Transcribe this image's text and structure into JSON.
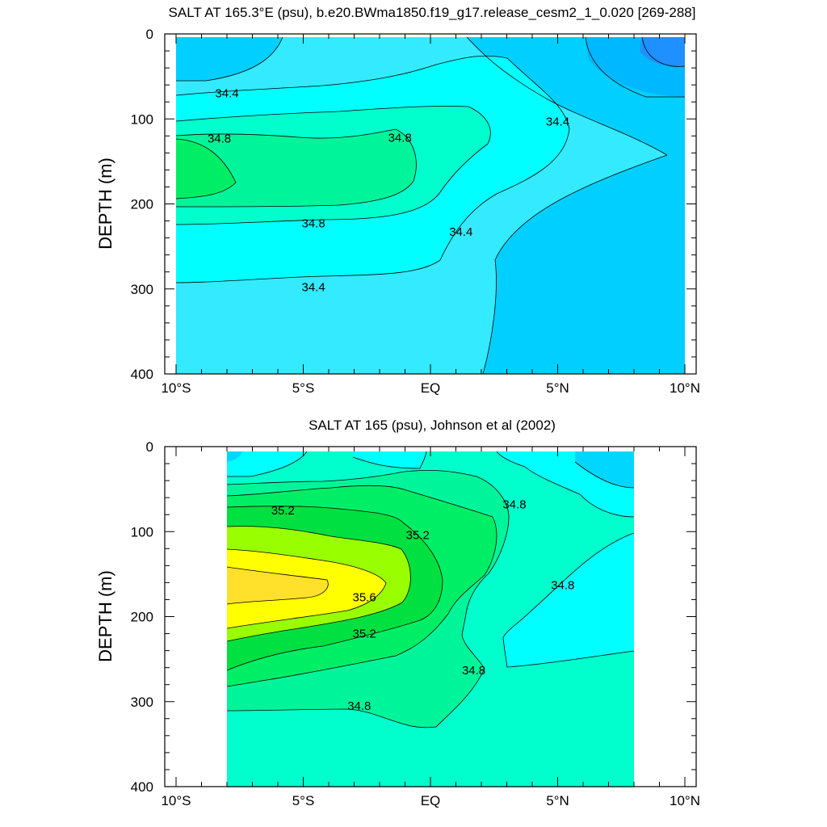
{
  "chart_data": [
    {
      "type": "contour",
      "title": "SALT AT 165.3°E (psu), b.e20.BWma1850.f19_g17.release_cesm2_1_0.020 [269-288]",
      "ylabel": "DEPTH (m)",
      "x_ticks": [
        {
          "value": -10,
          "label": "10°S"
        },
        {
          "value": -5,
          "label": "5°S"
        },
        {
          "value": 0,
          "label": "EQ"
        },
        {
          "value": 5,
          "label": "5°N"
        },
        {
          "value": 10,
          "label": "10°N"
        }
      ],
      "y_ticks": [
        {
          "value": 0,
          "label": "0"
        },
        {
          "value": 100,
          "label": "100"
        },
        {
          "value": 200,
          "label": "200"
        },
        {
          "value": 300,
          "label": "300"
        },
        {
          "value": 400,
          "label": "400"
        }
      ],
      "xlim": [
        -10,
        10
      ],
      "ylim": [
        400,
        0
      ],
      "data_extent": {
        "lat": [
          -10,
          10
        ],
        "depth": [
          5,
          400
        ]
      },
      "fill_levels": [
        {
          "range": "<34.0",
          "color": "#1e90ff"
        },
        {
          "range": "34.0-34.2",
          "color": "#00cfff"
        },
        {
          "range": "34.2-34.4",
          "color": "#33eaff"
        },
        {
          "range": "34.4-34.6",
          "color": "#00ffff"
        },
        {
          "range": "34.6-34.8",
          "color": "#00ffcc"
        },
        {
          "range": "34.8-35.0",
          "color": "#00f59a"
        },
        {
          "range": "35.0-35.2",
          "color": "#00ee66"
        }
      ],
      "contour_labels": [
        {
          "text": "34.4",
          "lat": -8.0,
          "depth": 70
        },
        {
          "text": "34.8",
          "lat": -8.3,
          "depth": 123
        },
        {
          "text": "34.8",
          "lat": -1.2,
          "depth": 122
        },
        {
          "text": "34.4",
          "lat": 5.0,
          "depth": 103
        },
        {
          "text": "34.8",
          "lat": -4.6,
          "depth": 223
        },
        {
          "text": "34.4",
          "lat": 1.2,
          "depth": 233
        },
        {
          "text": "34.4",
          "lat": -4.6,
          "depth": 298
        }
      ]
    },
    {
      "type": "contour",
      "title": "SALT AT 165 (psu), Johnson et al (2002)",
      "ylabel": "DEPTH (m)",
      "x_ticks": [
        {
          "value": -10,
          "label": "10°S"
        },
        {
          "value": -5,
          "label": "5°S"
        },
        {
          "value": 0,
          "label": "EQ"
        },
        {
          "value": 5,
          "label": "5°N"
        },
        {
          "value": 10,
          "label": "10°N"
        }
      ],
      "y_ticks": [
        {
          "value": 0,
          "label": "0"
        },
        {
          "value": 100,
          "label": "100"
        },
        {
          "value": 200,
          "label": "200"
        },
        {
          "value": 300,
          "label": "300"
        },
        {
          "value": 400,
          "label": "400"
        }
      ],
      "xlim": [
        -10,
        10
      ],
      "ylim": [
        400,
        0
      ],
      "data_extent": {
        "lat": [
          -8,
          8
        ],
        "depth": [
          5,
          400
        ]
      },
      "fill_levels": [
        {
          "range": "34.2-34.4",
          "color": "#00d6ff"
        },
        {
          "range": "34.4-34.6",
          "color": "#00ffff"
        },
        {
          "range": "34.6-34.8",
          "color": "#00ffcc"
        },
        {
          "range": "34.8-35.0",
          "color": "#00f59a"
        },
        {
          "range": "35.0-35.2",
          "color": "#00ee66"
        },
        {
          "range": "35.2-35.4",
          "color": "#00e040"
        },
        {
          "range": "35.4-35.6",
          "color": "#99ff00"
        },
        {
          "range": "35.6-35.8",
          "color": "#ffff00"
        },
        {
          "range": ">35.8",
          "color": "#ffe02a"
        }
      ],
      "contour_labels": [
        {
          "text": "35.2",
          "lat": -5.8,
          "depth": 75
        },
        {
          "text": "35.2",
          "lat": -0.5,
          "depth": 104
        },
        {
          "text": "34.8",
          "lat": 3.3,
          "depth": 68
        },
        {
          "text": "34.8",
          "lat": 5.2,
          "depth": 163
        },
        {
          "text": "35.6",
          "lat": -2.6,
          "depth": 177
        },
        {
          "text": "35.2",
          "lat": -2.6,
          "depth": 220
        },
        {
          "text": "34.8",
          "lat": 1.7,
          "depth": 263
        },
        {
          "text": "34.8",
          "lat": -2.8,
          "depth": 305
        }
      ]
    }
  ]
}
